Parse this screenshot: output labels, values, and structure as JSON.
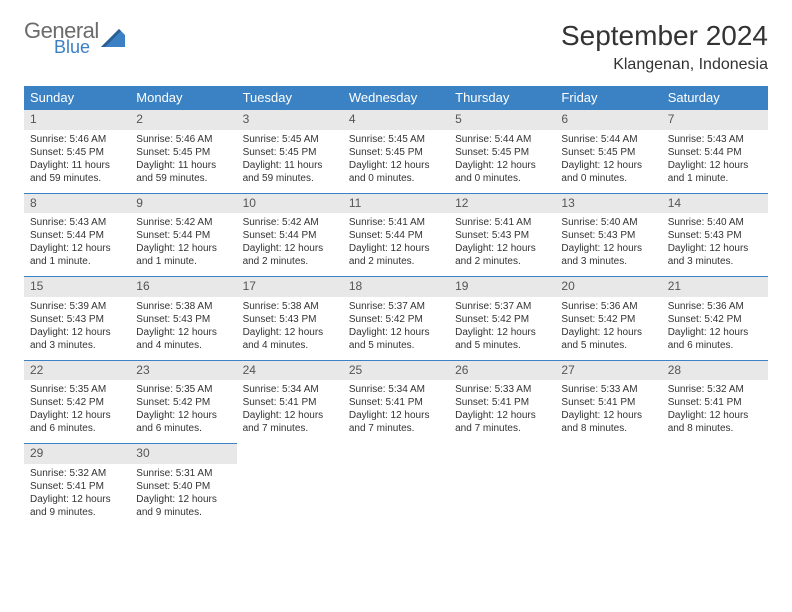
{
  "logo": {
    "general": "General",
    "blue": "Blue"
  },
  "title": "September 2024",
  "location": "Klangenan, Indonesia",
  "colors": {
    "header_bg": "#3b82c4",
    "header_text": "#ffffff",
    "daynum_bg": "#e8e8e8",
    "border": "#3b82c4",
    "text": "#333333",
    "logo_gray": "#6b6b6b",
    "logo_blue": "#3b7fc4"
  },
  "day_headers": [
    "Sunday",
    "Monday",
    "Tuesday",
    "Wednesday",
    "Thursday",
    "Friday",
    "Saturday"
  ],
  "weeks": [
    [
      {
        "n": "1",
        "sr": "Sunrise: 5:46 AM",
        "ss": "Sunset: 5:45 PM",
        "dl": "Daylight: 11 hours and 59 minutes."
      },
      {
        "n": "2",
        "sr": "Sunrise: 5:46 AM",
        "ss": "Sunset: 5:45 PM",
        "dl": "Daylight: 11 hours and 59 minutes."
      },
      {
        "n": "3",
        "sr": "Sunrise: 5:45 AM",
        "ss": "Sunset: 5:45 PM",
        "dl": "Daylight: 11 hours and 59 minutes."
      },
      {
        "n": "4",
        "sr": "Sunrise: 5:45 AM",
        "ss": "Sunset: 5:45 PM",
        "dl": "Daylight: 12 hours and 0 minutes."
      },
      {
        "n": "5",
        "sr": "Sunrise: 5:44 AM",
        "ss": "Sunset: 5:45 PM",
        "dl": "Daylight: 12 hours and 0 minutes."
      },
      {
        "n": "6",
        "sr": "Sunrise: 5:44 AM",
        "ss": "Sunset: 5:45 PM",
        "dl": "Daylight: 12 hours and 0 minutes."
      },
      {
        "n": "7",
        "sr": "Sunrise: 5:43 AM",
        "ss": "Sunset: 5:44 PM",
        "dl": "Daylight: 12 hours and 1 minute."
      }
    ],
    [
      {
        "n": "8",
        "sr": "Sunrise: 5:43 AM",
        "ss": "Sunset: 5:44 PM",
        "dl": "Daylight: 12 hours and 1 minute."
      },
      {
        "n": "9",
        "sr": "Sunrise: 5:42 AM",
        "ss": "Sunset: 5:44 PM",
        "dl": "Daylight: 12 hours and 1 minute."
      },
      {
        "n": "10",
        "sr": "Sunrise: 5:42 AM",
        "ss": "Sunset: 5:44 PM",
        "dl": "Daylight: 12 hours and 2 minutes."
      },
      {
        "n": "11",
        "sr": "Sunrise: 5:41 AM",
        "ss": "Sunset: 5:44 PM",
        "dl": "Daylight: 12 hours and 2 minutes."
      },
      {
        "n": "12",
        "sr": "Sunrise: 5:41 AM",
        "ss": "Sunset: 5:43 PM",
        "dl": "Daylight: 12 hours and 2 minutes."
      },
      {
        "n": "13",
        "sr": "Sunrise: 5:40 AM",
        "ss": "Sunset: 5:43 PM",
        "dl": "Daylight: 12 hours and 3 minutes."
      },
      {
        "n": "14",
        "sr": "Sunrise: 5:40 AM",
        "ss": "Sunset: 5:43 PM",
        "dl": "Daylight: 12 hours and 3 minutes."
      }
    ],
    [
      {
        "n": "15",
        "sr": "Sunrise: 5:39 AM",
        "ss": "Sunset: 5:43 PM",
        "dl": "Daylight: 12 hours and 3 minutes."
      },
      {
        "n": "16",
        "sr": "Sunrise: 5:38 AM",
        "ss": "Sunset: 5:43 PM",
        "dl": "Daylight: 12 hours and 4 minutes."
      },
      {
        "n": "17",
        "sr": "Sunrise: 5:38 AM",
        "ss": "Sunset: 5:43 PM",
        "dl": "Daylight: 12 hours and 4 minutes."
      },
      {
        "n": "18",
        "sr": "Sunrise: 5:37 AM",
        "ss": "Sunset: 5:42 PM",
        "dl": "Daylight: 12 hours and 5 minutes."
      },
      {
        "n": "19",
        "sr": "Sunrise: 5:37 AM",
        "ss": "Sunset: 5:42 PM",
        "dl": "Daylight: 12 hours and 5 minutes."
      },
      {
        "n": "20",
        "sr": "Sunrise: 5:36 AM",
        "ss": "Sunset: 5:42 PM",
        "dl": "Daylight: 12 hours and 5 minutes."
      },
      {
        "n": "21",
        "sr": "Sunrise: 5:36 AM",
        "ss": "Sunset: 5:42 PM",
        "dl": "Daylight: 12 hours and 6 minutes."
      }
    ],
    [
      {
        "n": "22",
        "sr": "Sunrise: 5:35 AM",
        "ss": "Sunset: 5:42 PM",
        "dl": "Daylight: 12 hours and 6 minutes."
      },
      {
        "n": "23",
        "sr": "Sunrise: 5:35 AM",
        "ss": "Sunset: 5:42 PM",
        "dl": "Daylight: 12 hours and 6 minutes."
      },
      {
        "n": "24",
        "sr": "Sunrise: 5:34 AM",
        "ss": "Sunset: 5:41 PM",
        "dl": "Daylight: 12 hours and 7 minutes."
      },
      {
        "n": "25",
        "sr": "Sunrise: 5:34 AM",
        "ss": "Sunset: 5:41 PM",
        "dl": "Daylight: 12 hours and 7 minutes."
      },
      {
        "n": "26",
        "sr": "Sunrise: 5:33 AM",
        "ss": "Sunset: 5:41 PM",
        "dl": "Daylight: 12 hours and 7 minutes."
      },
      {
        "n": "27",
        "sr": "Sunrise: 5:33 AM",
        "ss": "Sunset: 5:41 PM",
        "dl": "Daylight: 12 hours and 8 minutes."
      },
      {
        "n": "28",
        "sr": "Sunrise: 5:32 AM",
        "ss": "Sunset: 5:41 PM",
        "dl": "Daylight: 12 hours and 8 minutes."
      }
    ],
    [
      {
        "n": "29",
        "sr": "Sunrise: 5:32 AM",
        "ss": "Sunset: 5:41 PM",
        "dl": "Daylight: 12 hours and 9 minutes."
      },
      {
        "n": "30",
        "sr": "Sunrise: 5:31 AM",
        "ss": "Sunset: 5:40 PM",
        "dl": "Daylight: 12 hours and 9 minutes."
      },
      null,
      null,
      null,
      null,
      null
    ]
  ]
}
